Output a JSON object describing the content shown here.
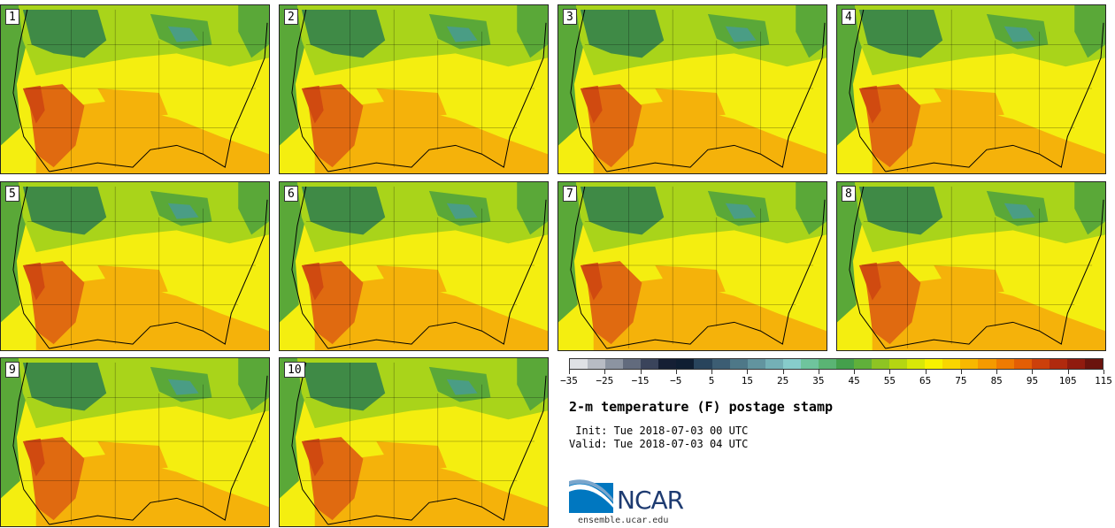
{
  "members": [
    "1",
    "2",
    "3",
    "4",
    "5",
    "6",
    "7",
    "8",
    "9",
    "10"
  ],
  "colorbar": {
    "colors": [
      "#dfe1e5",
      "#b8bcc4",
      "#8c94a1",
      "#626b7d",
      "#3a445b",
      "#151f34",
      "#0f1e32",
      "#28445c",
      "#3c5d73",
      "#4e7888",
      "#62949f",
      "#74b0b6",
      "#87cccb",
      "#6fc49d",
      "#5ab474",
      "#44a04c",
      "#60b03a",
      "#8ec423",
      "#b5d612",
      "#d8e808",
      "#f8f200",
      "#f9d600",
      "#f8b800",
      "#f59a00",
      "#ef7b02",
      "#e35e05",
      "#cc400b",
      "#b02a0e",
      "#901b0e",
      "#6a130d"
    ],
    "ticks": [
      "−35",
      "−25",
      "−15",
      "−5",
      "5",
      "15",
      "25",
      "35",
      "45",
      "55",
      "65",
      "75",
      "85",
      "95",
      "105",
      "115"
    ]
  },
  "title": "2-m temperature (F) postage stamp",
  "init": " Init: Tue 2018-07-03 00 UTC",
  "valid": "Valid: Tue 2018-07-03 04 UTC",
  "logo": {
    "name": "NCAR",
    "url": "ensemble.ucar.edu"
  },
  "map_colors": {
    "hot": "#e06a10",
    "warm": "#f5b20a",
    "mild": "#f4ee10",
    "cool": "#a9d41a",
    "cold": "#5aa838",
    "coldest": "#3f8a46",
    "lake": "#4a9d85"
  }
}
